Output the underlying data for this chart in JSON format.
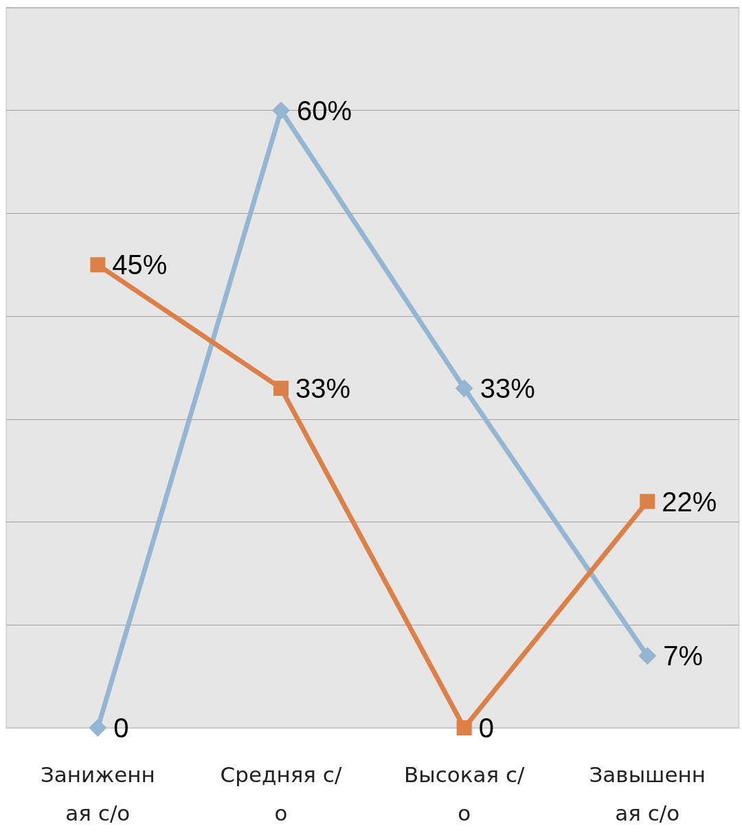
{
  "chart_data": {
    "type": "line",
    "categories": [
      "Заниженная с/о",
      "Средняя с/о",
      "Высокая с/о",
      "Завышенная с/о"
    ],
    "series": [
      {
        "color": "#94b6d2",
        "marker": "diamond",
        "values": [
          0,
          60,
          33,
          7
        ],
        "value_labels": [
          "0",
          "60%",
          "33%",
          "7%"
        ]
      },
      {
        "color": "#dd8047",
        "marker": "square",
        "values": [
          45,
          33,
          0,
          22
        ],
        "value_labels": [
          "45%",
          "33%",
          "0",
          "22%"
        ]
      }
    ],
    "ylim": [
      0,
      70
    ],
    "yticks": [
      0,
      10,
      20,
      30,
      40,
      50,
      60,
      70
    ],
    "grid": "y",
    "tick_labels": "x",
    "line_style": "solid"
  }
}
